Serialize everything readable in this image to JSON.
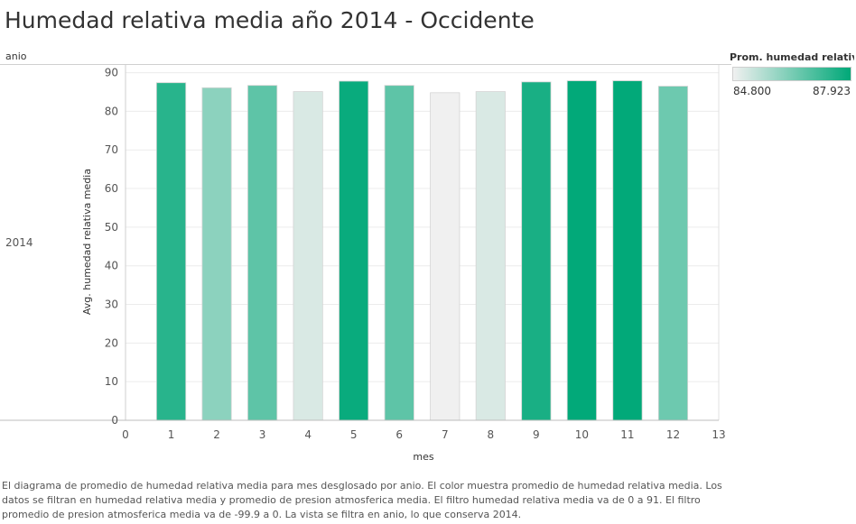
{
  "title": "Humedad relativa media año 2014 - Occidente",
  "row_header": "anio",
  "row_value": "2014",
  "legend": {
    "title": "Prom. humedad relativ..",
    "min_label": "84.800",
    "max_label": "87.923",
    "color_low": "#f0f0f0",
    "color_high": "#00a878"
  },
  "caption": "El diagrama de promedio de humedad relativa media para mes desglosado por anio.  El color muestra promedio de humedad relativa media. Los datos se filtran en humedad relativa media y promedio de presion atmosferica media. El filtro humedad relativa media va de 0 a 91. El filtro promedio de presion atmosferica media va de -99.9 a 0. La vista se filtra en anio, lo que conserva 2014.",
  "chart_data": {
    "type": "bar",
    "x": [
      1,
      2,
      3,
      4,
      5,
      6,
      7,
      8,
      9,
      10,
      11,
      12
    ],
    "values": [
      87.4,
      86.1,
      86.7,
      85.1,
      87.8,
      86.7,
      84.8,
      85.1,
      87.6,
      87.9,
      87.9,
      86.5
    ],
    "xlabel": "mes",
    "ylabel": "Avg. humedad relativa media",
    "xlim": [
      0,
      13
    ],
    "ylim": [
      0,
      92
    ],
    "xticks": [
      0,
      1,
      2,
      3,
      4,
      5,
      6,
      7,
      8,
      9,
      10,
      11,
      12,
      13
    ],
    "yticks": [
      0,
      10,
      20,
      30,
      40,
      50,
      60,
      70,
      80,
      90
    ],
    "grid": true,
    "color_range": [
      84.8,
      87.923
    ]
  }
}
